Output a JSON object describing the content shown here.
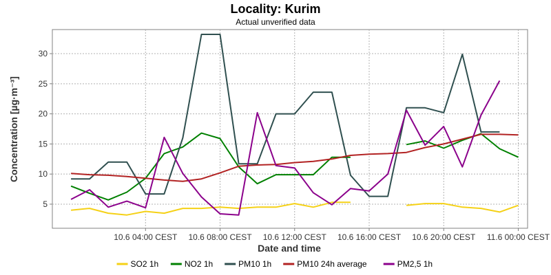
{
  "chart_data": {
    "type": "line",
    "title": "Locality: Kurim",
    "subtitle": "Actual unverified data",
    "xlabel": "Date and time",
    "ylabel": "Concentration [µg·m⁻³]",
    "xlim": [
      "2024-06-09 23:00",
      "2024-06-11 00:30"
    ],
    "ylim": [
      1,
      34
    ],
    "y_ticks": [
      5,
      10,
      15,
      20,
      25,
      30
    ],
    "x_ticks": [
      {
        "t": "2024-06-10 04:00",
        "label": "10.6 04:00 CEST"
      },
      {
        "t": "2024-06-10 08:00",
        "label": "10.6 08:00 CEST"
      },
      {
        "t": "2024-06-10 12:00",
        "label": "10.6 12:00 CEST"
      },
      {
        "t": "2024-06-10 16:00",
        "label": "10.6 16:00 CEST"
      },
      {
        "t": "2024-06-10 20:00",
        "label": "10.6 20:00 CEST"
      },
      {
        "t": "2024-06-11 00:00",
        "label": "11.6 00:00 CEST"
      }
    ],
    "grid": true,
    "legend_position": "bottom",
    "x": [
      "2024-06-10 00:00",
      "2024-06-10 01:00",
      "2024-06-10 02:00",
      "2024-06-10 03:00",
      "2024-06-10 04:00",
      "2024-06-10 05:00",
      "2024-06-10 06:00",
      "2024-06-10 07:00",
      "2024-06-10 08:00",
      "2024-06-10 09:00",
      "2024-06-10 10:00",
      "2024-06-10 11:00",
      "2024-06-10 12:00",
      "2024-06-10 13:00",
      "2024-06-10 14:00",
      "2024-06-10 15:00",
      "2024-06-10 16:00",
      "2024-06-10 17:00",
      "2024-06-10 18:00",
      "2024-06-10 19:00",
      "2024-06-10 20:00",
      "2024-06-10 21:00",
      "2024-06-10 22:00",
      "2024-06-10 23:00",
      "2024-06-11 00:00"
    ],
    "series": [
      {
        "name": "SO2 1h",
        "color": "#f5d116",
        "values": [
          4.0,
          4.3,
          3.5,
          3.2,
          3.8,
          3.5,
          4.3,
          4.3,
          4.5,
          4.3,
          4.5,
          4.5,
          5.1,
          4.5,
          5.3,
          5.3,
          null,
          null,
          4.8,
          5.1,
          5.1,
          4.5,
          4.3,
          3.7,
          4.8
        ]
      },
      {
        "name": "NO2 1h",
        "color": "#008000",
        "values": [
          8.0,
          6.8,
          5.7,
          7.0,
          9.3,
          13.4,
          14.5,
          16.8,
          15.9,
          11.2,
          8.4,
          9.9,
          9.9,
          9.9,
          12.8,
          12.8,
          null,
          null,
          14.9,
          15.5,
          14.3,
          15.6,
          16.7,
          14.2,
          12.8
        ]
      },
      {
        "name": "PM10 1h",
        "color": "#2f4f4f",
        "values": [
          9.2,
          9.2,
          12.0,
          12.0,
          6.7,
          6.7,
          16.0,
          33.2,
          33.2,
          11.7,
          11.7,
          20.0,
          20.0,
          23.6,
          23.6,
          9.8,
          6.3,
          6.3,
          21.0,
          21.0,
          20.2,
          29.9,
          17.0,
          17.0,
          null
        ]
      },
      {
        "name": "PM10 24h average",
        "color": "#b22222",
        "values": [
          10.1,
          9.9,
          9.8,
          9.6,
          9.3,
          9.0,
          8.8,
          9.2,
          10.2,
          11.3,
          11.5,
          11.6,
          11.9,
          12.1,
          12.5,
          13.1,
          13.3,
          13.4,
          13.6,
          14.4,
          15.0,
          15.8,
          16.6,
          16.6,
          16.5
        ]
      },
      {
        "name": "PM2,5 1h",
        "color": "#8b008b",
        "values": [
          5.8,
          7.4,
          4.5,
          5.5,
          4.4,
          16.1,
          10.1,
          6.2,
          3.4,
          3.2,
          20.2,
          11.4,
          11.0,
          6.9,
          4.9,
          7.6,
          7.2,
          10.0,
          20.6,
          14.8,
          17.9,
          11.2,
          19.8,
          25.5,
          null
        ]
      }
    ]
  }
}
